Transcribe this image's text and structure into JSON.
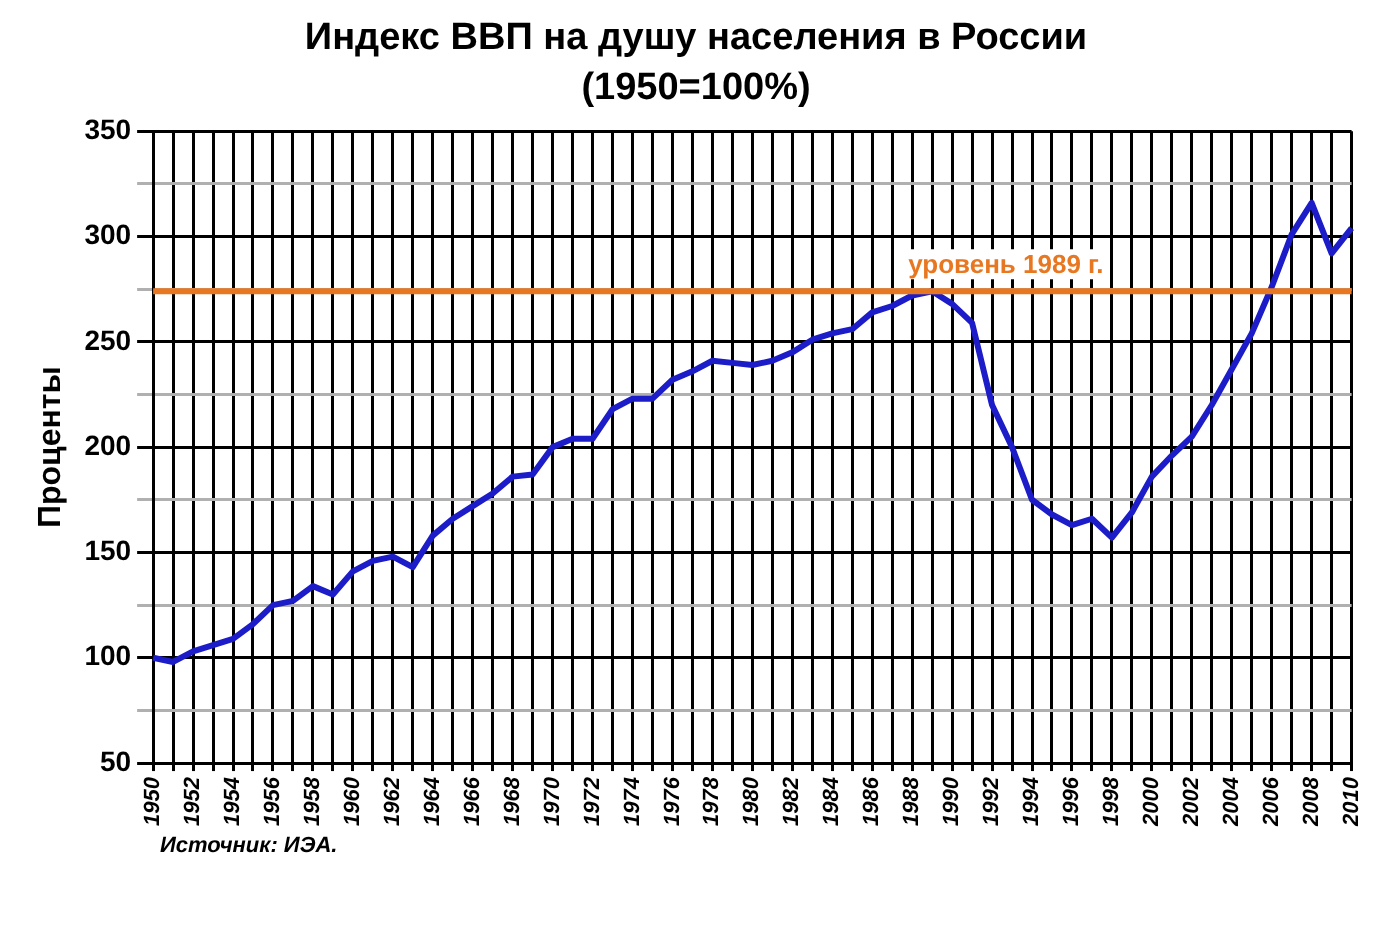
{
  "chart_data": {
    "type": "line",
    "title": "Индекс ВВП на душу населения в России",
    "subtitle": "(1950=100%)",
    "ylabel": "Проценты",
    "categories": [
      "1950",
      null,
      "1952",
      null,
      "1954",
      null,
      "1956",
      null,
      "1958",
      null,
      "1960",
      null,
      "1962",
      null,
      "1964",
      null,
      "1966",
      null,
      "1968",
      null,
      "1970",
      null,
      "1972",
      null,
      "1974",
      null,
      "1976",
      null,
      "1978",
      null,
      "1980",
      null,
      "1982",
      null,
      "1984",
      null,
      "1986",
      null,
      "1988",
      null,
      "1990",
      null,
      "1992",
      null,
      "1994",
      null,
      "1996",
      null,
      "1998",
      null,
      "2000",
      null,
      "2002",
      null,
      "2004",
      null,
      "2006",
      null,
      "2008",
      null,
      "2010"
    ],
    "series": [
      {
        "color": "#1c1cc8",
        "values": [
          100,
          98,
          103,
          106,
          109,
          116,
          125,
          127,
          134,
          130,
          141,
          146,
          148,
          143,
          158,
          166,
          172,
          178,
          186,
          187,
          200,
          204,
          204,
          218,
          223,
          223,
          232,
          236,
          241,
          240,
          239,
          241,
          245,
          251,
          254,
          256,
          264,
          267,
          272,
          274,
          268,
          259,
          220,
          200,
          175,
          168,
          163,
          166,
          157,
          169,
          186,
          196,
          205,
          220,
          237,
          254,
          276,
          301,
          316,
          292,
          304
        ]
      }
    ],
    "ylim": [
      50,
      350
    ],
    "yticks": [
      50,
      {
        "value": 75,
        "label": null
      },
      100,
      {
        "value": 125,
        "label": null
      },
      150,
      {
        "value": 175,
        "label": null
      },
      200,
      {
        "value": 225,
        "label": null
      },
      250,
      {
        "value": 275,
        "label": null
      },
      300,
      {
        "value": 325,
        "label": null
      },
      350
    ],
    "grid": true,
    "legend": false,
    "marker": "none",
    "line_style": "solid",
    "ref_lines": [
      {
        "axis": "y",
        "value": 274,
        "label": "уровень 1989 г.",
        "color": "#e87722"
      }
    ],
    "annotations": [
      "Источник: ИЭА."
    ]
  }
}
